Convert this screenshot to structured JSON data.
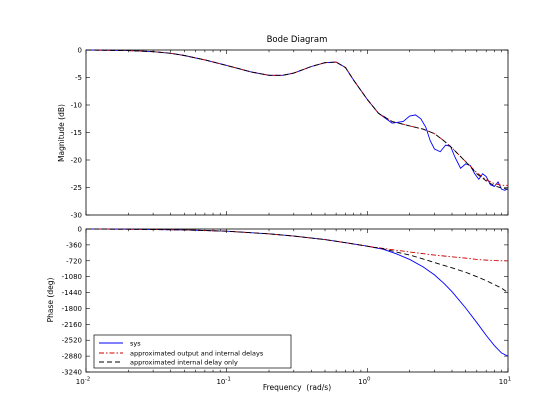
{
  "chart_data": {
    "type": "line",
    "title": "Bode Diagram",
    "xlabel": "Frequency  (rad/s)",
    "xscale": "log",
    "xlim": [
      0.01,
      10
    ],
    "x_ticks": [
      0.01,
      0.1,
      1,
      10
    ],
    "x_tick_labels": [
      {
        "base": "10",
        "exp": "-2"
      },
      {
        "base": "10",
        "exp": "-1"
      },
      {
        "base": "10",
        "exp": "0"
      },
      {
        "base": "10",
        "exp": "1"
      }
    ],
    "legend_position": "bottom-left",
    "colors": {
      "sys": "#0000ff",
      "output_internal": "#cc0000",
      "internal_only": "#000000"
    },
    "panels": [
      {
        "ylabel": "Magnitude (dB)",
        "ylim": [
          -30,
          0
        ],
        "y_ticks": [
          0,
          -5,
          -10,
          -15,
          -20,
          -25,
          -30
        ],
        "y_tick_labels": [
          "0",
          "-5",
          "-10",
          "-15",
          "-20",
          "-25",
          "-30"
        ],
        "series": [
          {
            "name": "sys",
            "x": [
              0.01,
              0.02,
              0.03,
              0.04,
              0.05,
              0.07,
              0.1,
              0.15,
              0.2,
              0.25,
              0.3,
              0.4,
              0.5,
              0.6,
              0.7,
              0.8,
              1.0,
              1.2,
              1.5,
              1.8,
              2.0,
              2.2,
              2.4,
              2.6,
              2.8,
              3.0,
              3.3,
              3.6,
              3.9,
              4.2,
              4.6,
              5.0,
              5.4,
              5.8,
              6.2,
              6.6,
              7.0,
              7.5,
              8.0,
              8.5,
              9.0,
              9.5,
              10.0
            ],
            "y": [
              0,
              -0.1,
              -0.3,
              -0.6,
              -1.0,
              -1.8,
              -2.8,
              -4.0,
              -4.6,
              -4.6,
              -4.2,
              -3.0,
              -2.3,
              -2.2,
              -3.2,
              -5.5,
              -9.0,
              -11.5,
              -13.3,
              -13.0,
              -12.0,
              -11.8,
              -12.5,
              -14.0,
              -16.5,
              -18.0,
              -18.5,
              -17.3,
              -17.5,
              -19.5,
              -21.5,
              -20.7,
              -21.0,
              -22.5,
              -23.5,
              -22.5,
              -23.0,
              -24.5,
              -24.8,
              -24.0,
              -25.3,
              -25.5,
              -25.2
            ]
          },
          {
            "name": "approximated output and internal delays",
            "x": [
              0.01,
              0.02,
              0.03,
              0.04,
              0.05,
              0.07,
              0.1,
              0.15,
              0.2,
              0.25,
              0.3,
              0.4,
              0.5,
              0.6,
              0.7,
              0.8,
              1.0,
              1.2,
              1.5,
              2.0,
              2.5,
              3.0,
              3.5,
              4.0,
              5.0,
              6.0,
              7.0,
              8.0,
              9.0,
              10.0
            ],
            "y": [
              0,
              -0.1,
              -0.3,
              -0.6,
              -1.0,
              -1.8,
              -2.8,
              -4.0,
              -4.6,
              -4.6,
              -4.2,
              -3.0,
              -2.3,
              -2.2,
              -3.2,
              -5.5,
              -9.0,
              -11.5,
              -13.0,
              -13.8,
              -14.4,
              -15.2,
              -16.5,
              -17.8,
              -20.3,
              -22.3,
              -23.6,
              -24.3,
              -24.6,
              -24.6
            ]
          },
          {
            "name": "approximated internal delay only",
            "x": [
              0.01,
              0.02,
              0.03,
              0.04,
              0.05,
              0.07,
              0.1,
              0.15,
              0.2,
              0.25,
              0.3,
              0.4,
              0.5,
              0.6,
              0.7,
              0.8,
              1.0,
              1.2,
              1.5,
              2.0,
              2.5,
              3.0,
              3.5,
              4.0,
              5.0,
              6.0,
              7.0,
              8.0,
              9.0,
              10.0
            ],
            "y": [
              0,
              -0.1,
              -0.3,
              -0.6,
              -1.0,
              -1.8,
              -2.8,
              -4.0,
              -4.6,
              -4.6,
              -4.2,
              -3.0,
              -2.3,
              -2.2,
              -3.2,
              -5.5,
              -9.0,
              -11.5,
              -13.0,
              -13.8,
              -14.4,
              -15.2,
              -16.5,
              -17.8,
              -20.3,
              -22.5,
              -23.8,
              -24.7,
              -25.1,
              -25.3
            ]
          }
        ]
      },
      {
        "ylabel": "Phase (deg)",
        "ylim": [
          -3240,
          0
        ],
        "y_ticks": [
          0,
          -360,
          -720,
          -1080,
          -1440,
          -1800,
          -2160,
          -2520,
          -2880,
          -3240
        ],
        "y_tick_labels": [
          "0",
          "-360",
          "-720",
          "-1080",
          "-1440",
          "-1800",
          "-2160",
          "-2520",
          "-2880",
          "-3240"
        ],
        "series": [
          {
            "name": "sys",
            "x": [
              0.01,
              0.02,
              0.05,
              0.1,
              0.2,
              0.3,
              0.5,
              0.7,
              1.0,
              1.3,
              1.6,
              2.0,
              2.5,
              3.0,
              3.5,
              4.0,
              5.0,
              6.0,
              7.0,
              8.0,
              9.0,
              10.0
            ],
            "y": [
              0,
              -5,
              -20,
              -50,
              -110,
              -160,
              -240,
              -310,
              -390,
              -460,
              -560,
              -690,
              -860,
              -1040,
              -1230,
              -1420,
              -1790,
              -2120,
              -2410,
              -2640,
              -2810,
              -2880
            ]
          },
          {
            "name": "approximated output and internal delays",
            "x": [
              0.01,
              0.02,
              0.05,
              0.1,
              0.2,
              0.3,
              0.5,
              0.7,
              1.0,
              1.3,
              1.6,
              2.0,
              2.5,
              3.0,
              4.0,
              5.0,
              6.0,
              7.0,
              8.0,
              9.0,
              10.0
            ],
            "y": [
              0,
              -5,
              -20,
              -50,
              -110,
              -160,
              -240,
              -310,
              -390,
              -440,
              -480,
              -520,
              -560,
              -590,
              -630,
              -660,
              -690,
              -705,
              -715,
              -720,
              -720
            ]
          },
          {
            "name": "approximated internal delay only",
            "x": [
              0.01,
              0.02,
              0.05,
              0.1,
              0.2,
              0.3,
              0.5,
              0.7,
              1.0,
              1.3,
              1.6,
              2.0,
              2.5,
              3.0,
              4.0,
              5.0,
              6.0,
              7.0,
              8.0,
              9.0,
              10.0
            ],
            "y": [
              0,
              -5,
              -20,
              -50,
              -110,
              -160,
              -240,
              -310,
              -390,
              -450,
              -520,
              -590,
              -680,
              -760,
              -880,
              -980,
              -1080,
              -1170,
              -1260,
              -1340,
              -1440
            ]
          }
        ]
      }
    ]
  }
}
